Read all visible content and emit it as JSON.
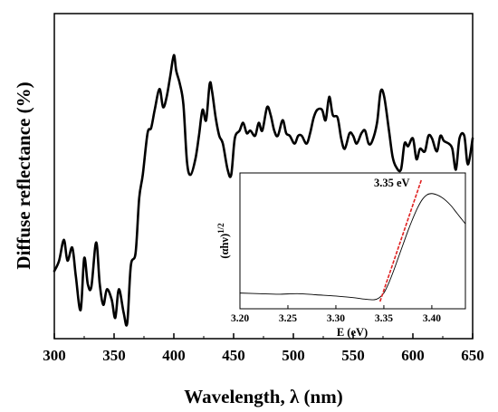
{
  "chart_data": [
    {
      "type": "line",
      "xlabel": "Wavelength, λ (nm)",
      "ylabel": "Diffuse reflectance  (%)",
      "xlim": [
        300,
        650
      ],
      "x_ticks": [
        "300",
        "350",
        "400",
        "450",
        "500",
        "550",
        "600",
        "650"
      ],
      "y_ticks_shown": false,
      "grid": false,
      "line_color": "#000000",
      "x": [
        300,
        304,
        308,
        311,
        315,
        318,
        322,
        325,
        328,
        331,
        335,
        338,
        341,
        344,
        348,
        351,
        354,
        358,
        361,
        364,
        368,
        371,
        374,
        378,
        381,
        384,
        388,
        391,
        394,
        397,
        400,
        402,
        405,
        408,
        411,
        414,
        418,
        421,
        424,
        427,
        430,
        432,
        435,
        438,
        441,
        445,
        448,
        451,
        455,
        458,
        461,
        464,
        468,
        471,
        474,
        478,
        481,
        484,
        487,
        491,
        494,
        497,
        501,
        504,
        507,
        511,
        514,
        517,
        520,
        524,
        527,
        530,
        533,
        537,
        540,
        543,
        547,
        550,
        553,
        557,
        560,
        563,
        566,
        570,
        573,
        576,
        580,
        583,
        586,
        590,
        593,
        596,
        600,
        603,
        606,
        610,
        613,
        616,
        620,
        623,
        626,
        630,
        633,
        636,
        639,
        643,
        646,
        650
      ],
      "y": [
        21,
        25,
        33,
        25,
        30,
        19,
        6,
        26,
        16,
        15,
        32,
        16,
        8,
        14,
        10,
        3,
        14,
        5,
        1,
        23,
        28,
        49,
        58,
        74,
        76,
        83,
        91,
        84,
        88,
        96,
        104,
        98,
        93,
        85,
        63,
        58,
        64,
        73,
        83,
        79,
        93,
        90,
        80,
        73,
        70,
        60,
        58,
        72,
        75,
        78,
        74,
        75,
        73,
        78,
        75,
        84,
        81,
        75,
        73,
        79,
        74,
        73,
        70,
        73,
        73,
        70,
        74,
        80,
        83,
        83,
        79,
        88,
        81,
        80,
        72,
        68,
        74,
        73,
        70,
        74,
        75,
        70,
        71,
        78,
        90,
        88,
        75,
        65,
        61,
        60,
        70,
        69,
        72,
        64,
        68,
        67,
        73,
        72,
        67,
        73,
        71,
        70,
        68,
        60,
        72,
        73,
        62,
        72
      ],
      "ylim": [
        -5,
        120
      ]
    },
    {
      "type": "line",
      "inset": true,
      "xlabel": "E (eV)",
      "ylabel": "(αhν)",
      "ylabel_superscript": "1/2",
      "xlim": [
        3.2,
        3.435
      ],
      "ylim": [
        0,
        1
      ],
      "x_ticks": [
        "3.20",
        "3.25",
        "3.30",
        "3.35",
        "3.40"
      ],
      "grid": false,
      "series": [
        {
          "role": "data",
          "color": "#000000",
          "x": [
            3.2,
            3.22,
            3.24,
            3.26,
            3.28,
            3.3,
            3.32,
            3.33,
            3.34,
            3.345,
            3.35,
            3.355,
            3.36,
            3.365,
            3.37,
            3.375,
            3.38,
            3.385,
            3.39,
            3.395,
            3.4,
            3.405,
            3.41,
            3.415,
            3.42,
            3.425,
            3.43,
            3.435
          ],
          "y": [
            0.07,
            0.065,
            0.06,
            0.065,
            0.055,
            0.045,
            0.03,
            0.02,
            0.015,
            0.03,
            0.07,
            0.15,
            0.25,
            0.36,
            0.47,
            0.58,
            0.68,
            0.77,
            0.84,
            0.88,
            0.89,
            0.88,
            0.86,
            0.83,
            0.79,
            0.74,
            0.69,
            0.64
          ]
        },
        {
          "role": "linear-fit",
          "color": "#e02020",
          "dashed": true,
          "x": [
            3.346,
            3.389
          ],
          "y": [
            0.0,
            1.0
          ]
        }
      ],
      "annotation": {
        "text": "3.35 eV",
        "x": 3.35
      }
    }
  ]
}
